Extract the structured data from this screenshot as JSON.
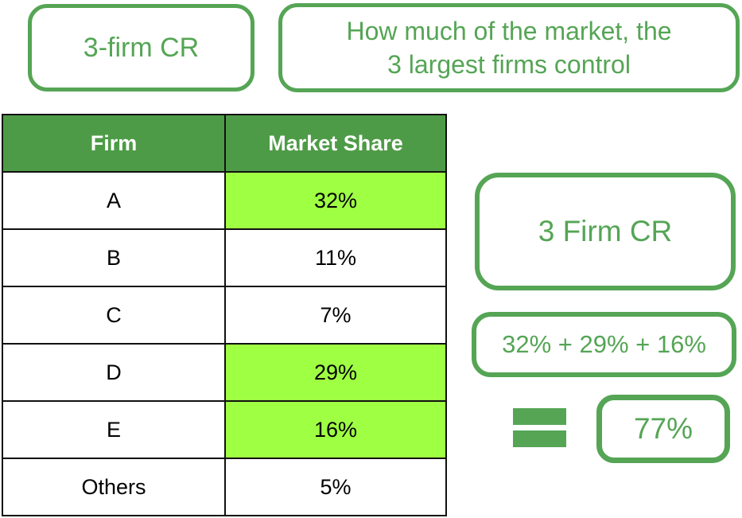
{
  "colors": {
    "accent_green": "#55a555",
    "header_green": "#4e9b47",
    "highlight_green": "#9fff43",
    "grid_black": "#111111",
    "header_text": "#ffffff",
    "cell_text": "#000000"
  },
  "labels": {
    "term": "3-firm CR",
    "definition_line1": "How much of the market, the",
    "definition_line2": "3 largest firms control",
    "cr_label": "3 Firm CR",
    "sum_expression": "32% + 29% + 16%",
    "result": "77%"
  },
  "icons": {
    "equals_icon": "="
  },
  "table": {
    "columns": [
      "Firm",
      "Market Share"
    ],
    "rows": [
      {
        "firm": "A",
        "share": "32%",
        "highlighted": true
      },
      {
        "firm": "B",
        "share": "11%",
        "highlighted": false
      },
      {
        "firm": "C",
        "share": "7%",
        "highlighted": false
      },
      {
        "firm": "D",
        "share": "29%",
        "highlighted": true
      },
      {
        "firm": "E",
        "share": "16%",
        "highlighted": true
      },
      {
        "firm": "Others",
        "share": "5%",
        "highlighted": false
      }
    ]
  }
}
